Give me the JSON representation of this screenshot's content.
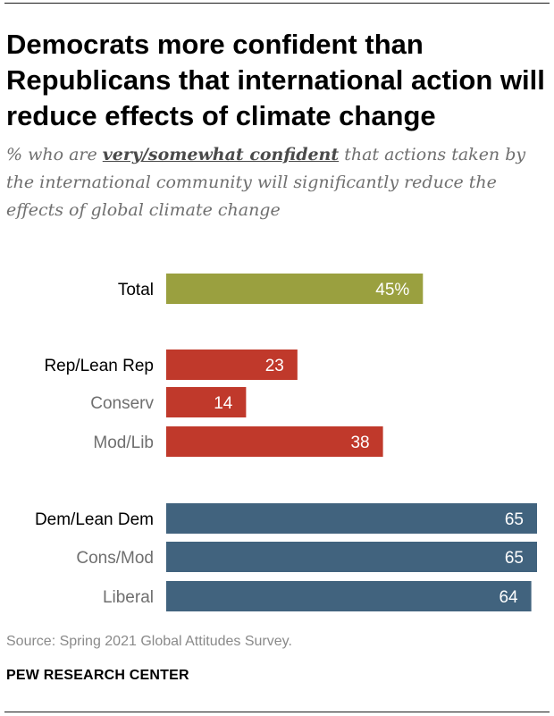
{
  "title": "Democrats more confident than Republicans that international action will reduce effects of climate change",
  "subtitle": {
    "prefix": "% who are ",
    "emphasis": "very/somewhat confident",
    "suffix": " that actions taken by the international community will significantly reduce the effects of global climate change"
  },
  "chart_data": {
    "type": "bar",
    "orientation": "horizontal",
    "title": "Democrats more confident than Republicans that international action will reduce effects of climate change",
    "xlim": [
      0,
      65
    ],
    "categories": [
      "Total",
      "Rep/Lean Rep",
      "Conserv",
      "Mod/Lib",
      "Dem/Lean Dem",
      "Cons/Mod",
      "Liberal"
    ],
    "values": [
      45,
      23,
      14,
      38,
      65,
      65,
      64
    ],
    "value_labels": [
      "45%",
      "23",
      "14",
      "38",
      "65",
      "65",
      "64"
    ],
    "groups": [
      "total",
      "rep",
      "rep",
      "rep",
      "dem",
      "dem",
      "dem"
    ],
    "subgroup": [
      false,
      false,
      true,
      true,
      false,
      true,
      true
    ],
    "colors": {
      "total": "#9aa03f",
      "rep": "#c0392b",
      "dem": "#41637e"
    },
    "label_colors": {
      "main": "#000000",
      "sub": "#6f6f6f"
    }
  },
  "source": "Source: Spring 2021 Global Attitudes Survey.",
  "credit": "PEW RESEARCH CENTER"
}
